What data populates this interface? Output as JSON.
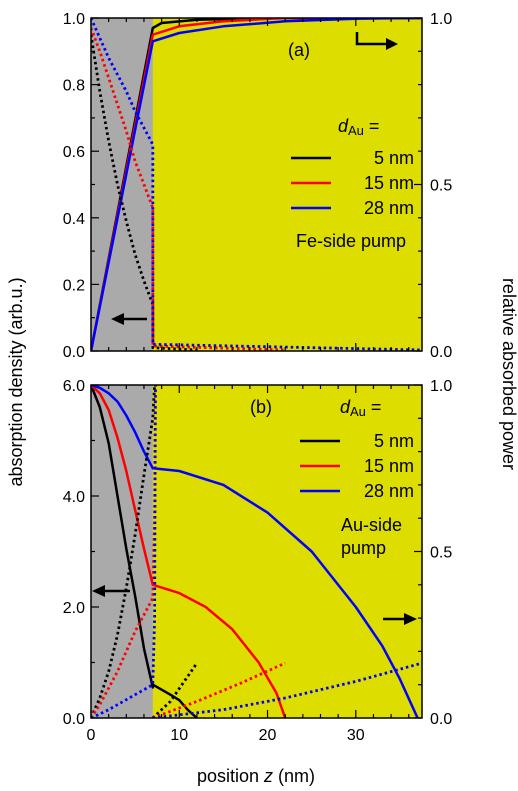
{
  "colors": {
    "fe_region": "#aaaaaa",
    "au_region": "#dddd00",
    "d5": "#000000",
    "d15": "#ff0000",
    "d28": "#0000ff"
  },
  "shared": {
    "xlabel_prefix": "position ",
    "xlabel_var": "z",
    "xlabel_unit": " (nm)",
    "ylabel_left": "absorption density (arb.u.)",
    "ylabel_right": "relative absorbed power",
    "x_ticks": [
      "0",
      "10",
      "20",
      "30"
    ],
    "legend_title_var": "d",
    "legend_title_sub": "Au",
    "legend_title_eq": " =",
    "legend": [
      "5 nm",
      "15 nm",
      "28 nm"
    ]
  },
  "chart_data": [
    {
      "type": "line",
      "panel_label": "(a)",
      "annotation": "Fe-side pump",
      "xlim": [
        0,
        37.5
      ],
      "ylim_left": [
        0,
        1.0
      ],
      "ylim_right": [
        0,
        1.0
      ],
      "y_ticks_left": [
        "0.0",
        "0.2",
        "0.4",
        "0.6",
        "0.8",
        "1.0"
      ],
      "y_ticks_right": [
        "0.0",
        "0.5",
        "1.0"
      ],
      "fe_region": [
        0,
        7
      ],
      "arrow_left_marks": "absorption density axis",
      "arrow_right_marks": "relative absorbed power axis",
      "series": [
        {
          "name": "5 nm",
          "color_key": "d5",
          "kind": "cumulative_right",
          "points": [
            [
              0,
              0.0
            ],
            [
              7,
              0.97
            ],
            [
              8,
              0.985
            ],
            [
              12,
              0.995
            ],
            [
              20,
              1.0
            ],
            [
              37.5,
              1.0
            ]
          ]
        },
        {
          "name": "15 nm",
          "color_key": "d15",
          "kind": "cumulative_right",
          "points": [
            [
              0,
              0.0
            ],
            [
              7,
              0.95
            ],
            [
              10,
              0.975
            ],
            [
              15,
              0.99
            ],
            [
              22,
              1.0
            ],
            [
              37.5,
              1.0
            ]
          ]
        },
        {
          "name": "28 nm",
          "color_key": "d28",
          "kind": "cumulative_right",
          "points": [
            [
              0,
              0.0
            ],
            [
              7,
              0.93
            ],
            [
              10,
              0.955
            ],
            [
              15,
              0.975
            ],
            [
              22,
              0.99
            ],
            [
              30,
              0.998
            ],
            [
              37.5,
              1.0
            ]
          ]
        },
        {
          "name": "5 nm",
          "color_key": "d5",
          "kind": "density_left",
          "points": [
            [
              0,
              0.95
            ],
            [
              1,
              0.78
            ],
            [
              2,
              0.63
            ],
            [
              3,
              0.5
            ],
            [
              4,
              0.39
            ],
            [
              5,
              0.29
            ],
            [
              6,
              0.21
            ],
            [
              7,
              0.14
            ],
            [
              7.01,
              0.01
            ],
            [
              12,
              0.003
            ]
          ]
        },
        {
          "name": "15 nm",
          "color_key": "d15",
          "kind": "density_left",
          "points": [
            [
              0,
              0.97
            ],
            [
              1,
              0.9
            ],
            [
              2,
              0.82
            ],
            [
              3,
              0.74
            ],
            [
              4,
              0.66
            ],
            [
              5,
              0.57
            ],
            [
              6,
              0.5
            ],
            [
              7,
              0.43
            ],
            [
              7.01,
              0.015
            ],
            [
              22,
              0.003
            ]
          ]
        },
        {
          "name": "28 nm",
          "color_key": "d28",
          "kind": "density_left",
          "points": [
            [
              0,
              1.0
            ],
            [
              1,
              0.94
            ],
            [
              2,
              0.88
            ],
            [
              3,
              0.83
            ],
            [
              4,
              0.78
            ],
            [
              5,
              0.72
            ],
            [
              6,
              0.67
            ],
            [
              7,
              0.62
            ],
            [
              7.01,
              0.02
            ],
            [
              37.5,
              0.003
            ]
          ]
        }
      ]
    },
    {
      "type": "line",
      "panel_label": "(b)",
      "annotation_line1": "Au-side",
      "annotation_line2": "pump",
      "xlim": [
        0,
        37.5
      ],
      "ylim_left": [
        0,
        6.0
      ],
      "ylim_right": [
        0,
        1.0
      ],
      "y_ticks_left": [
        "0.0",
        "2.0",
        "4.0",
        "6.0"
      ],
      "y_ticks_right": [
        "0.0",
        "0.5",
        "1.0"
      ],
      "fe_region": [
        0,
        7
      ],
      "arrow_left_marks": "absorption density axis",
      "arrow_right_marks": "relative absorbed power axis",
      "series": [
        {
          "name": "5 nm",
          "color_key": "d5",
          "kind": "density_left",
          "points": [
            [
              0,
              6.0
            ],
            [
              1,
              5.6
            ],
            [
              2,
              4.95
            ],
            [
              3,
              4.0
            ],
            [
              4,
              3.05
            ],
            [
              5,
              2.2
            ],
            [
              6,
              1.25
            ],
            [
              7,
              0.55
            ],
            [
              7.01,
              0.6
            ],
            [
              9,
              0.42
            ],
            [
              10,
              0.32
            ],
            [
              11,
              0.14
            ],
            [
              12,
              0.0
            ]
          ]
        },
        {
          "name": "15 nm",
          "color_key": "d15",
          "kind": "density_left",
          "points": [
            [
              0,
              6.0
            ],
            [
              1,
              5.85
            ],
            [
              2,
              5.55
            ],
            [
              3,
              5.05
            ],
            [
              4,
              4.45
            ],
            [
              5,
              3.75
            ],
            [
              6,
              3.05
            ],
            [
              7,
              2.4
            ],
            [
              10,
              2.25
            ],
            [
              13,
              2.0
            ],
            [
              16,
              1.6
            ],
            [
              19,
              1.0
            ],
            [
              21,
              0.45
            ],
            [
              22,
              0.0
            ]
          ]
        },
        {
          "name": "28 nm",
          "color_key": "d28",
          "kind": "density_left",
          "points": [
            [
              0,
              6.0
            ],
            [
              1,
              5.95
            ],
            [
              2,
              5.85
            ],
            [
              3,
              5.7
            ],
            [
              4,
              5.45
            ],
            [
              5,
              5.15
            ],
            [
              6,
              4.8
            ],
            [
              7,
              4.5
            ],
            [
              10,
              4.45
            ],
            [
              15,
              4.2
            ],
            [
              20,
              3.7
            ],
            [
              25,
              3.0
            ],
            [
              30,
              2.0
            ],
            [
              33,
              1.3
            ],
            [
              35,
              0.7
            ],
            [
              37,
              0.0
            ]
          ]
        },
        {
          "name": "5 nm",
          "color_key": "d5",
          "kind": "cumulative_right",
          "points": [
            [
              0,
              0.0
            ],
            [
              1,
              0.06
            ],
            [
              2,
              0.14
            ],
            [
              3,
              0.25
            ],
            [
              4,
              0.39
            ],
            [
              5,
              0.55
            ],
            [
              6,
              0.73
            ],
            [
              7,
              0.9
            ],
            [
              7.2,
              1.0
            ],
            [
              7.3,
              1.0
            ]
          ]
        },
        {
          "name": "15 nm",
          "color_key": "d15",
          "kind": "cumulative_right",
          "points": [
            [
              0,
              0.0
            ],
            [
              1,
              0.04
            ],
            [
              2,
              0.09
            ],
            [
              3,
              0.14
            ],
            [
              4,
              0.2
            ],
            [
              5,
              0.26
            ],
            [
              6,
              0.31
            ],
            [
              7,
              0.36
            ],
            [
              7.2,
              0.6
            ],
            [
              7.3,
              1.0
            ]
          ]
        },
        {
          "name": "28 nm",
          "color_key": "d28",
          "kind": "cumulative_right",
          "points": [
            [
              0,
              0.0
            ],
            [
              1,
              0.012
            ],
            [
              2,
              0.025
            ],
            [
              3,
              0.04
            ],
            [
              4,
              0.055
            ],
            [
              5,
              0.07
            ],
            [
              6,
              0.085
            ],
            [
              7,
              0.1
            ],
            [
              7.2,
              0.3
            ],
            [
              7.3,
              1.0
            ]
          ]
        },
        {
          "name": "5 nm",
          "color_key": "d5",
          "kind": "cumulative_right",
          "points": [
            [
              7,
              0.0
            ],
            [
              9,
              0.05
            ],
            [
              12,
              0.165
            ]
          ]
        },
        {
          "name": "15 nm",
          "color_key": "d15",
          "kind": "cumulative_right",
          "points": [
            [
              7,
              0.0
            ],
            [
              12,
              0.05
            ],
            [
              17,
              0.105
            ],
            [
              22,
              0.165
            ]
          ]
        },
        {
          "name": "28 nm",
          "color_key": "d28",
          "kind": "cumulative_right",
          "points": [
            [
              7,
              0.0
            ],
            [
              15,
              0.025
            ],
            [
              22,
              0.06
            ],
            [
              30,
              0.11
            ],
            [
              37.5,
              0.165
            ]
          ]
        }
      ]
    }
  ]
}
